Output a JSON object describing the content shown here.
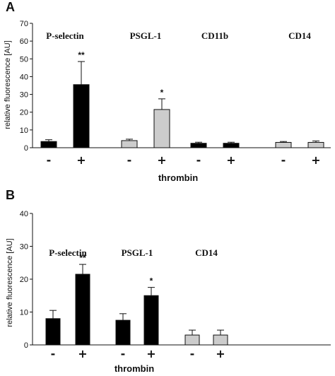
{
  "chart_data": [
    {
      "panel": "A",
      "type": "bar",
      "ylabel": "relative fluorescence [AU]",
      "xlabel": "thrombin",
      "ylim": [
        0,
        70
      ],
      "yticks": [
        0,
        10,
        20,
        30,
        40,
        50,
        60,
        70
      ],
      "groups": [
        {
          "label": "P-selectin",
          "bars": [
            {
              "condition": "-",
              "value": 3.5,
              "error": 1.0,
              "fill": "#000000",
              "sig": ""
            },
            {
              "condition": "+",
              "value": 35.5,
              "error": 13.0,
              "fill": "#000000",
              "sig": "**"
            }
          ]
        },
        {
          "label": "PSGL-1",
          "bars": [
            {
              "condition": "-",
              "value": 4.0,
              "error": 0.8,
              "fill": "#cccccc",
              "sig": ""
            },
            {
              "condition": "+",
              "value": 21.5,
              "error": 6.0,
              "fill": "#cccccc",
              "sig": "*"
            }
          ]
        },
        {
          "label": "CD11b",
          "bars": [
            {
              "condition": "-",
              "value": 2.5,
              "error": 0.6,
              "fill": "#000000",
              "sig": ""
            },
            {
              "condition": "+",
              "value": 2.5,
              "error": 0.6,
              "fill": "#000000",
              "sig": ""
            }
          ]
        },
        {
          "label": "CD14",
          "bars": [
            {
              "condition": "-",
              "value": 3.0,
              "error": 0.5,
              "fill": "#cccccc",
              "sig": ""
            },
            {
              "condition": "+",
              "value": 3.0,
              "error": 0.8,
              "fill": "#cccccc",
              "sig": ""
            }
          ]
        }
      ]
    },
    {
      "panel": "B",
      "type": "bar",
      "ylabel": "relative fluorescence [AU]",
      "xlabel": "thrombin",
      "ylim": [
        0,
        40
      ],
      "yticks": [
        0,
        10,
        20,
        30,
        40
      ],
      "groups": [
        {
          "label": "P-selectin",
          "bars": [
            {
              "condition": "-",
              "value": 8.0,
              "error": 2.5,
              "fill": "#000000",
              "sig": ""
            },
            {
              "condition": "+",
              "value": 21.5,
              "error": 3.0,
              "fill": "#000000",
              "sig": "**"
            }
          ]
        },
        {
          "label": "PSGL-1",
          "bars": [
            {
              "condition": "-",
              "value": 7.5,
              "error": 2.0,
              "fill": "#000000",
              "sig": ""
            },
            {
              "condition": "+",
              "value": 15.0,
              "error": 2.5,
              "fill": "#000000",
              "sig": "*"
            }
          ]
        },
        {
          "label": "CD14",
          "bars": [
            {
              "condition": "-",
              "value": 3.0,
              "error": 1.5,
              "fill": "#cccccc",
              "sig": ""
            },
            {
              "condition": "+",
              "value": 3.0,
              "error": 1.5,
              "fill": "#cccccc",
              "sig": ""
            }
          ]
        }
      ]
    }
  ]
}
